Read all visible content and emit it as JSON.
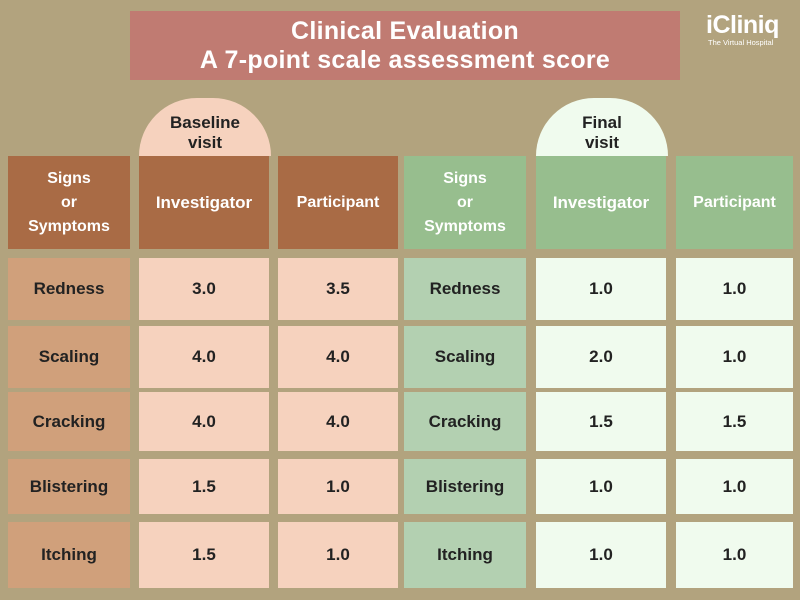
{
  "title": {
    "line1": "Clinical Evaluation",
    "line2": "A 7-point scale assessment score"
  },
  "logo": {
    "brand": "iCliniq",
    "tagline": "The Virtual Hospital"
  },
  "baseline": {
    "caption_line1": "Baseline",
    "caption_line2": "visit",
    "headers": {
      "signs_line1": "Signs",
      "signs_line2": "or",
      "signs_line3": "Symptoms",
      "investigator": "Investigator",
      "participant": "Participant"
    },
    "rows": [
      {
        "symptom": "Redness",
        "investigator": "3.0",
        "participant": "3.5"
      },
      {
        "symptom": "Scaling",
        "investigator": "4.0",
        "participant": "4.0"
      },
      {
        "symptom": "Cracking",
        "investigator": "4.0",
        "participant": "4.0"
      },
      {
        "symptom": "Blistering",
        "investigator": "1.5",
        "participant": "1.0"
      },
      {
        "symptom": "Itching",
        "investigator": "1.5",
        "participant": "1.0"
      }
    ]
  },
  "final": {
    "caption_line1": "Final",
    "caption_line2": "visit",
    "headers": {
      "signs_line1": "Signs",
      "signs_line2": "or",
      "signs_line3": "Symptoms",
      "investigator": "Investigator",
      "participant": "Participant"
    },
    "rows": [
      {
        "symptom": "Redness",
        "investigator": "1.0",
        "participant": "1.0"
      },
      {
        "symptom": "Scaling",
        "investigator": "2.0",
        "participant": "1.0"
      },
      {
        "symptom": "Cracking",
        "investigator": "1.5",
        "participant": "1.5"
      },
      {
        "symptom": "Blistering",
        "investigator": "1.0",
        "participant": "1.0"
      },
      {
        "symptom": "Itching",
        "investigator": "1.0",
        "participant": "1.0"
      }
    ]
  },
  "colors": {
    "background": "#b2a37e",
    "title_bg": "#c07b72",
    "baseline_header": "#a96b45",
    "baseline_label": "#d0a07b",
    "baseline_value": "#f6d2be",
    "final_header": "#97be8e",
    "final_label": "#b3d0b1",
    "final_value": "#f0fbee"
  }
}
